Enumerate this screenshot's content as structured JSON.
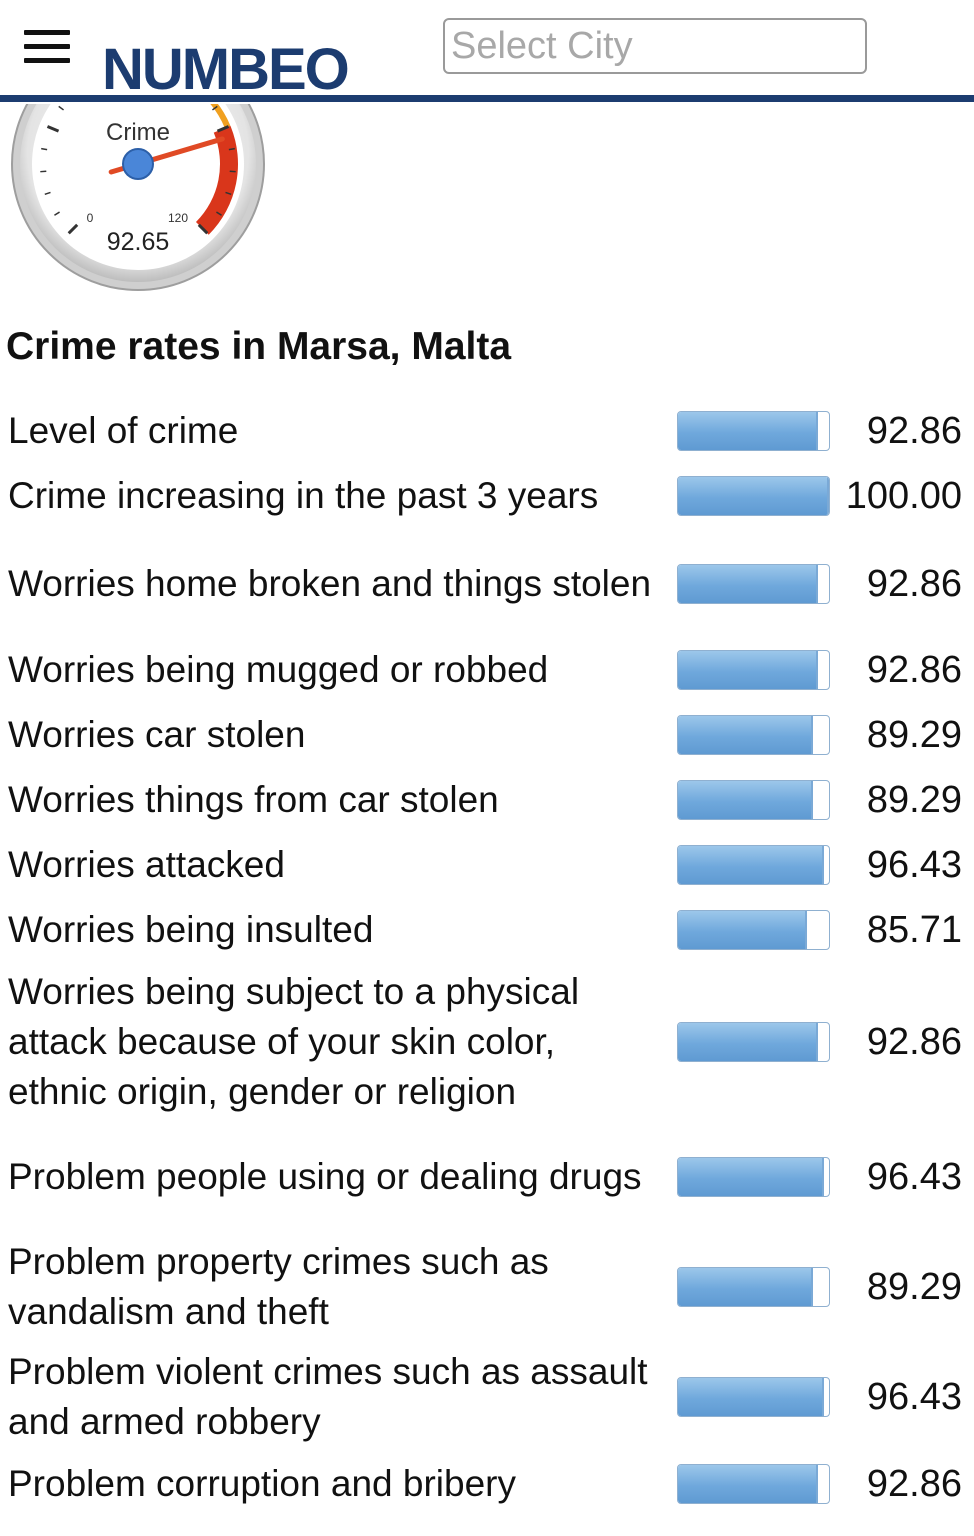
{
  "header": {
    "logo": "NUMBEO",
    "search_placeholder": "Select City"
  },
  "gauge": {
    "label": "Crime",
    "value_text": "92.65",
    "value": 92.65,
    "min_label": "0",
    "max_label": "120",
    "min": 0,
    "max": 120
  },
  "page_title": "Crime rates in Marsa, Malta",
  "rows": [
    {
      "label": "Level of crime",
      "value": "92.86"
    },
    {
      "label": "Crime increasing in the past 3 years",
      "value": "100.00"
    },
    {
      "label": "Worries home broken and things stolen",
      "value": "92.86"
    },
    {
      "label": "Worries being mugged or robbed",
      "value": "92.86"
    },
    {
      "label": "Worries car stolen",
      "value": "89.29"
    },
    {
      "label": "Worries things from car stolen",
      "value": "89.29"
    },
    {
      "label": "Worries attacked",
      "value": "96.43"
    },
    {
      "label": "Worries being insulted",
      "value": "85.71"
    },
    {
      "label": "Worries being subject to a physical attack because of your skin color, ethnic origin, gender or religion",
      "value": "92.86"
    },
    {
      "label": "Problem people using or dealing drugs",
      "value": "96.43"
    },
    {
      "label": "Problem property crimes such as vandalism and theft",
      "value": "89.29"
    },
    {
      "label": "Problem violent crimes such as assault and armed robbery",
      "value": "96.43"
    },
    {
      "label": "Problem corruption and bribery",
      "value": "92.86"
    }
  ],
  "colors": {
    "brand": "#1c3c70",
    "bar_fill": "#6fa8dc",
    "gauge_danger": "#d9361b",
    "gauge_warning": "#f0a020"
  }
}
